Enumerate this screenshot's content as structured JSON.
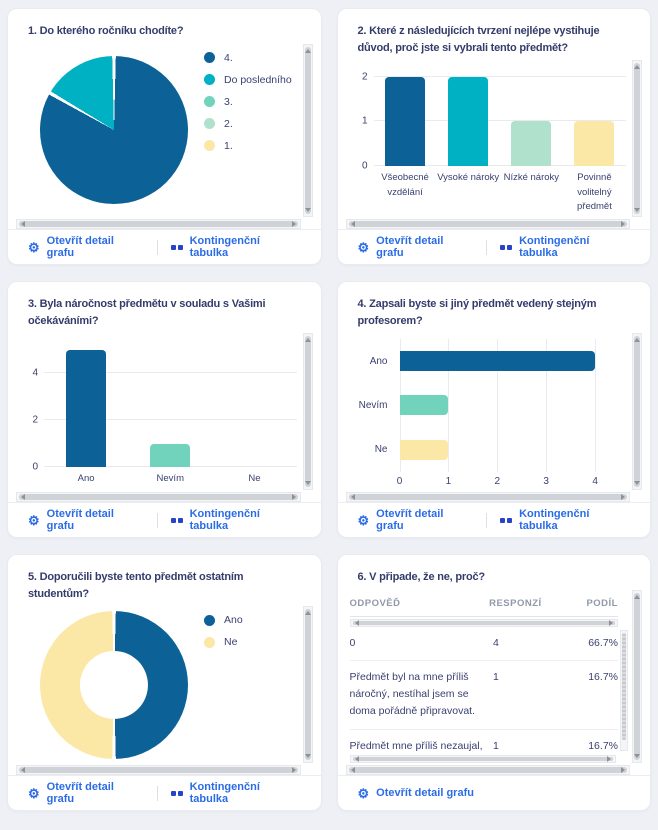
{
  "app": {
    "background": "#eef0f5",
    "card_background": "#ffffff"
  },
  "palette": {
    "blue": "#0c6197",
    "teal": "#00b1c4",
    "mint": "#72d3bd",
    "mint_light": "#afe1cd",
    "yellow": "#fbe8a6",
    "link_blue": "#2b6ce6",
    "text_navy": "#343c6b",
    "table_header_grey": "#9098aa"
  },
  "links": {
    "open_detail": "Otevřít detail grafu",
    "pivot_table": "Kontingenční tabulka"
  },
  "panels": [
    {
      "title": "1. Do kterého ročníku chodíte?",
      "footer": [
        "open_detail",
        "pivot_table"
      ]
    },
    {
      "title": "2. Které z následujících tvrzení nejlépe vystihuje důvod, proč jste si vybrali tento předmět?",
      "footer": [
        "open_detail",
        "pivot_table"
      ]
    },
    {
      "title": "3. Byla náročnost předmětu v souladu s Vašimi očekáváními?",
      "footer": [
        "open_detail",
        "pivot_table"
      ]
    },
    {
      "title": "4. Zapsali byste si jiný předmět vedený stejným profesorem?",
      "footer": [
        "open_detail",
        "pivot_table"
      ]
    },
    {
      "title": "5. Doporučili byste tento předmět ostatním studentům?",
      "footer": [
        "open_detail",
        "pivot_table"
      ]
    },
    {
      "title": "6. V připade, že ne, proč?",
      "footer": [
        "open_detail"
      ]
    }
  ],
  "chart_data": [
    {
      "panel": 1,
      "type": "pie",
      "title": "1. Do kterého ročníku chodíte?",
      "labels": [
        "4.",
        "Do posledního",
        "3.",
        "2.",
        "1."
      ],
      "values": [
        5,
        1,
        0,
        0,
        0
      ],
      "colors": [
        "blue",
        "teal",
        "mint",
        "mint_light",
        "yellow"
      ],
      "legend_position": "right"
    },
    {
      "panel": 2,
      "type": "bar",
      "title": "2. Které z následujících tvrzení nejlépe vystihuje důvod, proč jste si vybrali tento předmět?",
      "categories": [
        "Všeobecné vzdělání",
        "Vysoké nároky",
        "Nízké nároky",
        "Povinně volitelný předmět"
      ],
      "values": [
        2,
        2,
        1,
        1
      ],
      "colors": [
        "blue",
        "teal",
        "mint_light",
        "yellow"
      ],
      "yticks": [
        0,
        1,
        2
      ],
      "ylim": [
        0,
        2.15
      ],
      "grid": true,
      "label_lines": 3
    },
    {
      "panel": 3,
      "type": "bar",
      "title": "3. Byla náročnost předmětu v souladu s Vašimi očekáváními?",
      "categories": [
        "Ano",
        "Nevím",
        "Ne"
      ],
      "values": [
        5,
        1,
        0
      ],
      "colors": [
        "blue",
        "mint",
        "yellow"
      ],
      "yticks": [
        0,
        2,
        4
      ],
      "ylim": [
        0,
        5.3
      ],
      "grid": true,
      "label_lines": 1
    },
    {
      "panel": 4,
      "type": "bar-horizontal",
      "title": "4. Zapsali byste si jiný předmět vedený stejným profesorem?",
      "categories": [
        "Ano",
        "Nevím",
        "Ne"
      ],
      "values": [
        4,
        1,
        1
      ],
      "colors": [
        "blue",
        "mint",
        "yellow"
      ],
      "xticks": [
        0,
        1,
        2,
        3,
        4
      ],
      "xlim": [
        0,
        4.55
      ],
      "grid": true
    },
    {
      "panel": 5,
      "type": "donut",
      "title": "5. Doporučili byste tento předmět ostatním studentům?",
      "labels": [
        "Ano",
        "Ne"
      ],
      "values": [
        3,
        3
      ],
      "colors": [
        "blue",
        "yellow"
      ],
      "legend_position": "right"
    },
    {
      "panel": 6,
      "type": "table",
      "title": "6. V připade, že ne, proč?",
      "columns": [
        "ODPOVĚĎ",
        "RESPONZÍ",
        "PODÍL"
      ],
      "rows": [
        {
          "answer": "0",
          "responses": "4",
          "share": "66.7%"
        },
        {
          "answer": "Předmět byl na mne příliš náročný, nestíhal jsem se doma pořádně připravovat.",
          "responses": "1",
          "share": "16.7%"
        },
        {
          "answer": "Předmět mne příliš nezaujal, vyučující ho nepodával",
          "answer_overflow": "zajímavě.",
          "responses": "1",
          "share": "16.7%",
          "clipped": true
        }
      ]
    }
  ]
}
